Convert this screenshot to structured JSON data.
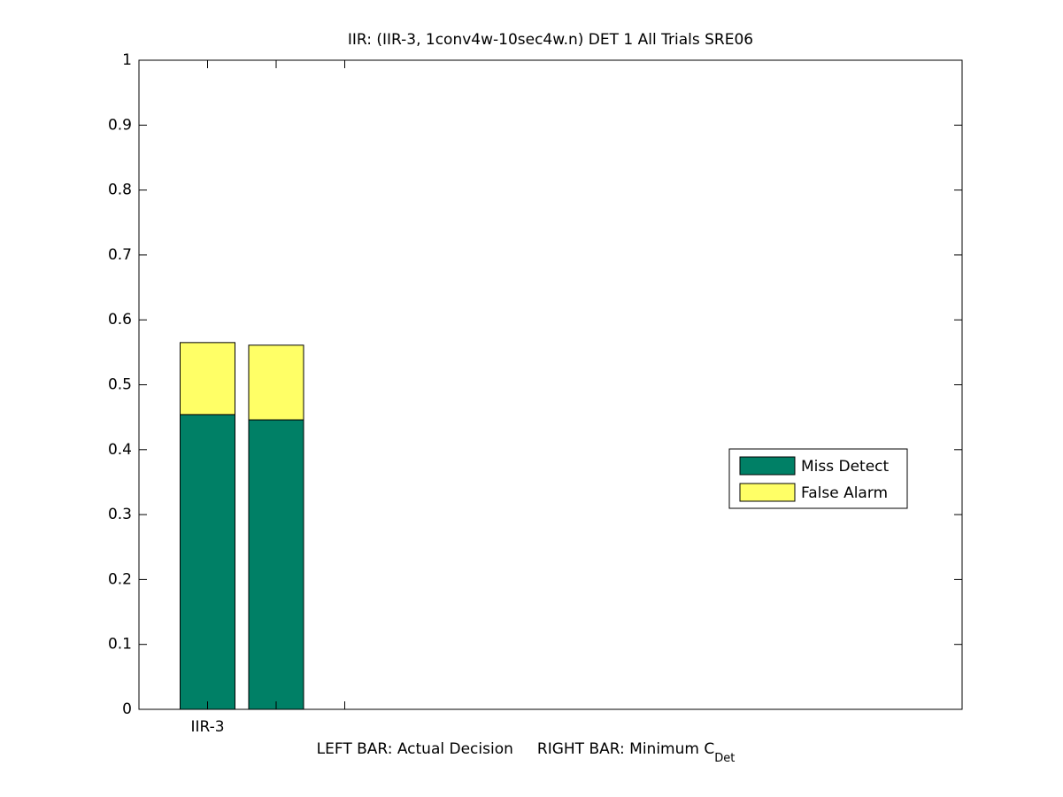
{
  "chart_data": {
    "type": "stacked_bar",
    "title": "IIR: (IIR-3, 1conv4w-10sec4w.n) DET 1 All Trials SRE06",
    "xlabel": {
      "text": "LEFT BAR: Actual Decision     RIGHT BAR: Minimum C",
      "subscript": "Det"
    },
    "x": [
      1,
      2
    ],
    "series": [
      {
        "name": "Miss Detect",
        "color": "#008066",
        "values": [
          0.454,
          0.446
        ]
      },
      {
        "name": "False Alarm",
        "color": "#ffff66",
        "values": [
          0.111,
          0.115
        ]
      }
    ],
    "bar_width": 0.8,
    "xlim": [
      0,
      12
    ],
    "xticks": [
      {
        "value": 1,
        "label": "IIR-3"
      },
      {
        "value": 2,
        "label": null
      },
      {
        "value": 3,
        "label": null
      }
    ],
    "ylim": [
      0,
      1
    ],
    "yticks": [
      0,
      0.1,
      0.2,
      0.3,
      0.4,
      0.5,
      0.6,
      0.7,
      0.8,
      0.9,
      1
    ],
    "grid": false,
    "legend": "right"
  }
}
